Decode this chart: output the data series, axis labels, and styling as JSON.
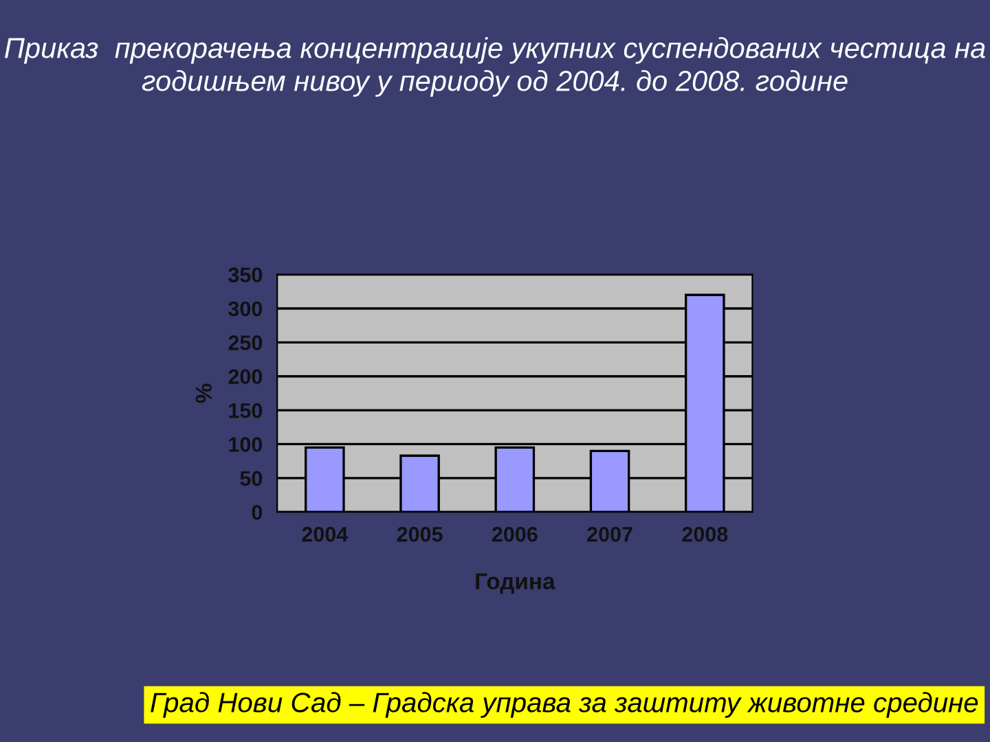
{
  "chart_data": {
    "type": "bar",
    "title": "Приказ  прекорачења концентрације укупних суспендованих честица на годишњем нивоу у периоду од 2004. до 2008. године",
    "xlabel": "Година",
    "ylabel": "%",
    "categories": [
      "2004",
      "2005",
      "2006",
      "2007",
      "2008"
    ],
    "values": [
      95,
      83,
      95,
      90,
      320
    ],
    "color": "#9999ff",
    "ylim": [
      0,
      350
    ],
    "yticks": [
      0,
      50,
      100,
      150,
      200,
      250,
      300,
      350
    ],
    "grid": "y",
    "annotations": [
      "Град Нови Сад – Градска управа за заштиту животне средине"
    ]
  }
}
